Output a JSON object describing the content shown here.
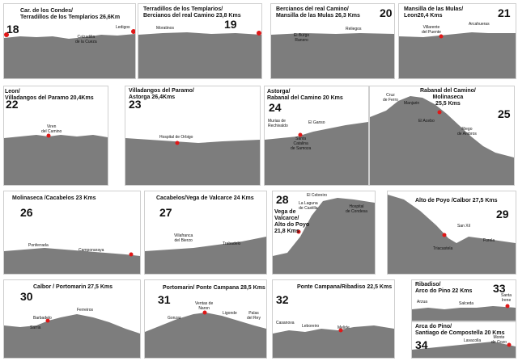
{
  "colors": {
    "terrain": "#7d7d7d",
    "marker": "#e01818",
    "frame": "#cfcfcf"
  },
  "stages": [
    {
      "id": "18",
      "title": "Car. de los Condes/\nTerradillos de los Templarios 26,6Km",
      "labels": [
        "Calzadilla\nde la Cueza",
        "Ledigos"
      ]
    },
    {
      "id": "19",
      "title": "Terradillos de los Templarios/\nBercianos del real Camino 23,8 Kms",
      "labels": [
        "Moratinos"
      ]
    },
    {
      "id": "20",
      "title": "Bercianos del real Camino/\nMansilla de las Mulas 26,3 Kms",
      "labels": [
        "El Burgo\nRanero",
        "Reliegos"
      ]
    },
    {
      "id": "21",
      "title": "Mansilla de las Mulas/\nLeon20,4 Kms",
      "labels": [
        "Villarente\ndel Puente",
        "Arcahueras"
      ]
    },
    {
      "id": "22",
      "title": "Leon/\nVilladangos del Paramo 20,4Kms",
      "labels": [
        "Viren\ndel Camino"
      ]
    },
    {
      "id": "23",
      "title": "Villadangos del Paramo/\nAstorga 26,4Kms",
      "labels": [
        "Hospital de Orbigo"
      ]
    },
    {
      "id": "24",
      "title": "Astorga/\nRabanal del Camino 20 Kms",
      "labels": [
        "Murias de\nRechivaldo",
        "El Ganso",
        "Santa\nCatalina\nde Samoza"
      ]
    },
    {
      "id": "25",
      "title": "Rabanal del Camino/\nMolinaseca\n25,5 Kms",
      "labels": [
        "Cruz\nde Ferro",
        "Manjarin",
        "El Acebo",
        "Riego\nde Ambros"
      ]
    },
    {
      "id": "26",
      "title": "Molinaseca /Cacabelos 23 Kms",
      "labels": [
        "Ponferrada",
        "Camponaraya"
      ]
    },
    {
      "id": "27",
      "title": "Cacabelos/Vega de Valcarce 24 Kms",
      "labels": [
        "Villafranca\ndel Bierzo",
        "Trabadelo"
      ]
    },
    {
      "id": "28",
      "title": "Vega de\nValcarce/\nAlto do Poyo\n21,8 Kms",
      "labels": [
        "El Cebreiro",
        "La Laguna\nde Castilla",
        "Hospital\nde Condesa"
      ]
    },
    {
      "id": "29",
      "title": "Alto de Poyo /Calbor 27,5 Kms",
      "labels": [
        "San Xil",
        "Triacastela",
        "Furela"
      ]
    },
    {
      "id": "30",
      "title": "Calbor / Portomarin 27,5 Kms",
      "labels": [
        "Barbadelo",
        "Sarria",
        "Ferreiros"
      ]
    },
    {
      "id": "31",
      "title": "Portomarin/ Ponte Campana 28,5 Kms",
      "labels": [
        "Ventas de\nNaron",
        "Gonzar",
        "Ligonde",
        "Palas\ndel Rey"
      ]
    },
    {
      "id": "32",
      "title": "Ponte Campana/Ribadiso 22,5 Kms",
      "labels": [
        "Casanova",
        "Leboreiro",
        "Melide"
      ]
    },
    {
      "id": "33",
      "title": "Ribadiso/\nArco do Pino 22 Kms",
      "labels": [
        "Arzua",
        "Salceda",
        "Santa\nIrene"
      ]
    },
    {
      "id": "34",
      "title": "Arca do Pino/\nSantiago de Compostella 20 Kms",
      "labels": [
        "Lavacolla",
        "Monte\ndo Gozo"
      ]
    }
  ]
}
